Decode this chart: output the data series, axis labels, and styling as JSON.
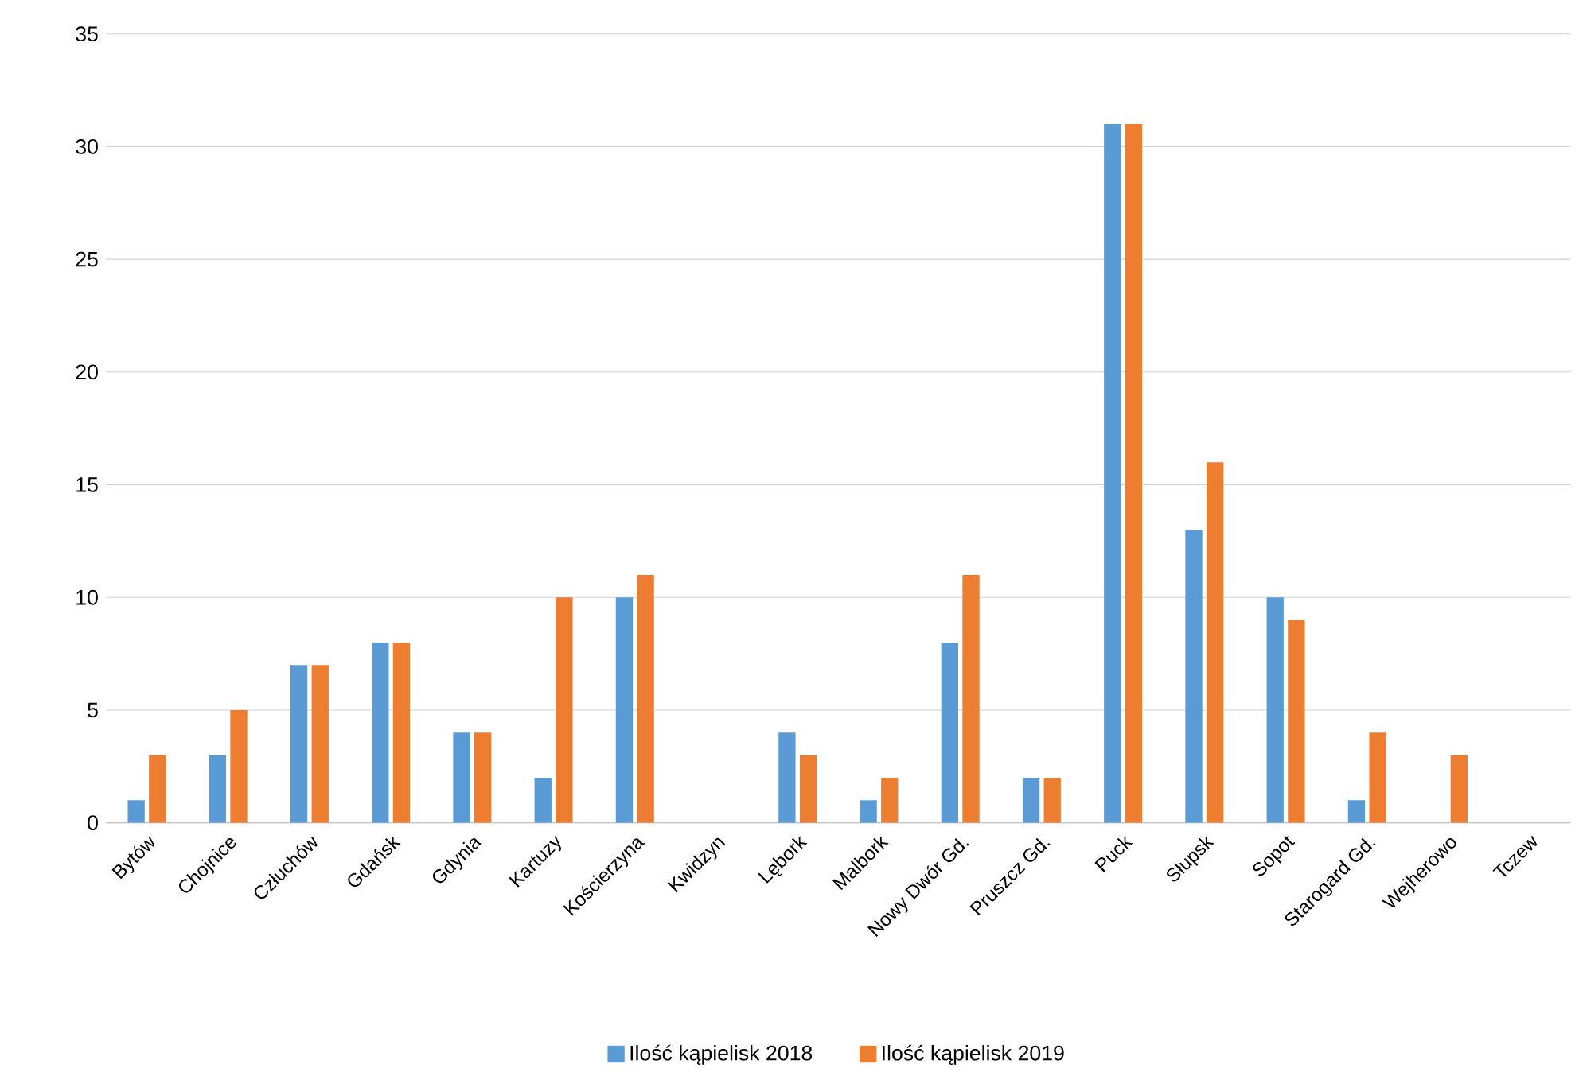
{
  "chart_data": {
    "type": "bar",
    "categories": [
      "Bytów",
      "Chojnice",
      "Człuchów",
      "Gdańsk",
      "Gdynia",
      "Kartuzy",
      "Kościerzyna",
      "Kwidzyn",
      "Lębork",
      "Malbork",
      "Nowy Dwór Gd.",
      "Pruszcz Gd.",
      "Puck",
      "Słupsk",
      "Sopot",
      "Starogard Gd.",
      "Wejherowo",
      "Tczew"
    ],
    "series": [
      {
        "name": "Ilość kąpielisk 2018",
        "color": "#5b9bd5",
        "values": [
          1,
          3,
          7,
          8,
          4,
          2,
          10,
          null,
          4,
          1,
          8,
          2,
          31,
          13,
          10,
          1,
          null,
          null
        ]
      },
      {
        "name": "Ilość kąpielisk 2019",
        "color": "#ed7d31",
        "values": [
          3,
          5,
          7,
          8,
          4,
          10,
          11,
          null,
          3,
          2,
          11,
          2,
          31,
          16,
          9,
          4,
          3,
          null
        ]
      }
    ],
    "ylim": [
      0,
      35
    ],
    "yticks": [
      0,
      5,
      10,
      15,
      20,
      25,
      30,
      35
    ],
    "grid": "y",
    "legend": "bottom"
  }
}
